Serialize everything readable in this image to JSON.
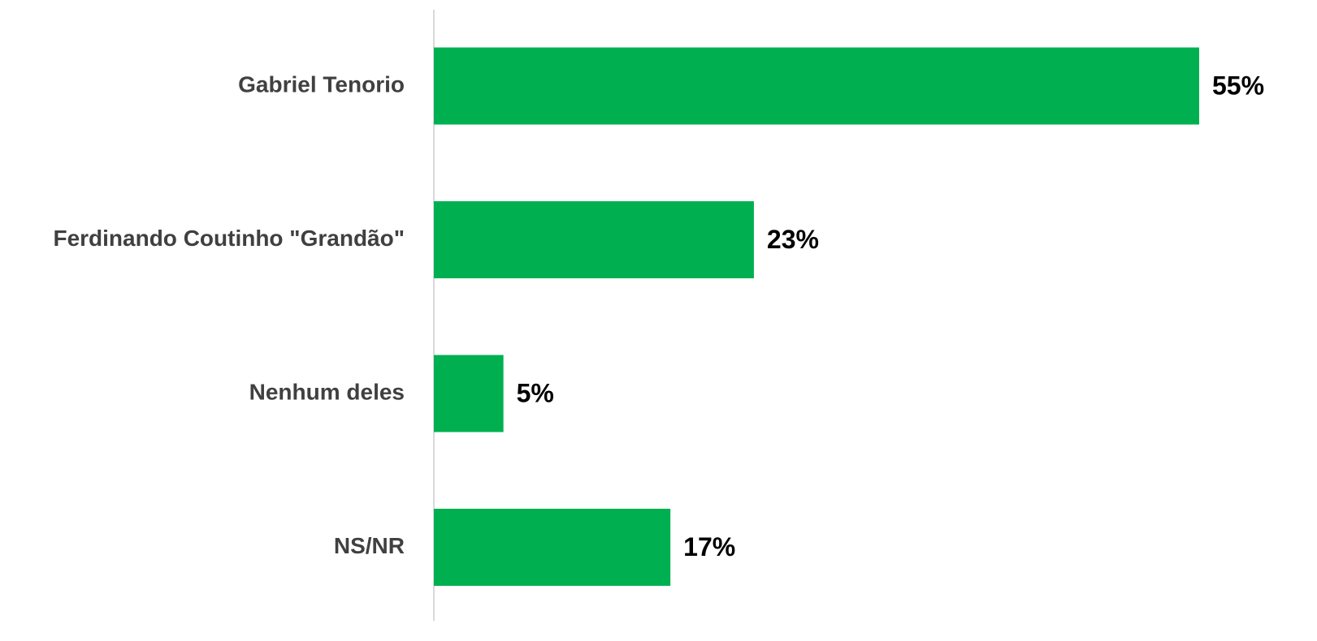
{
  "chart_data": {
    "type": "bar",
    "orientation": "horizontal",
    "categories": [
      "Gabriel Tenorio",
      "Ferdinando Coutinho \"Grandão\"",
      "Nenhum deles",
      "NS/NR"
    ],
    "values": [
      55,
      23,
      5,
      17
    ],
    "value_labels": [
      "55%",
      "23%",
      "5%",
      "17%"
    ],
    "color": "#00b050"
  }
}
